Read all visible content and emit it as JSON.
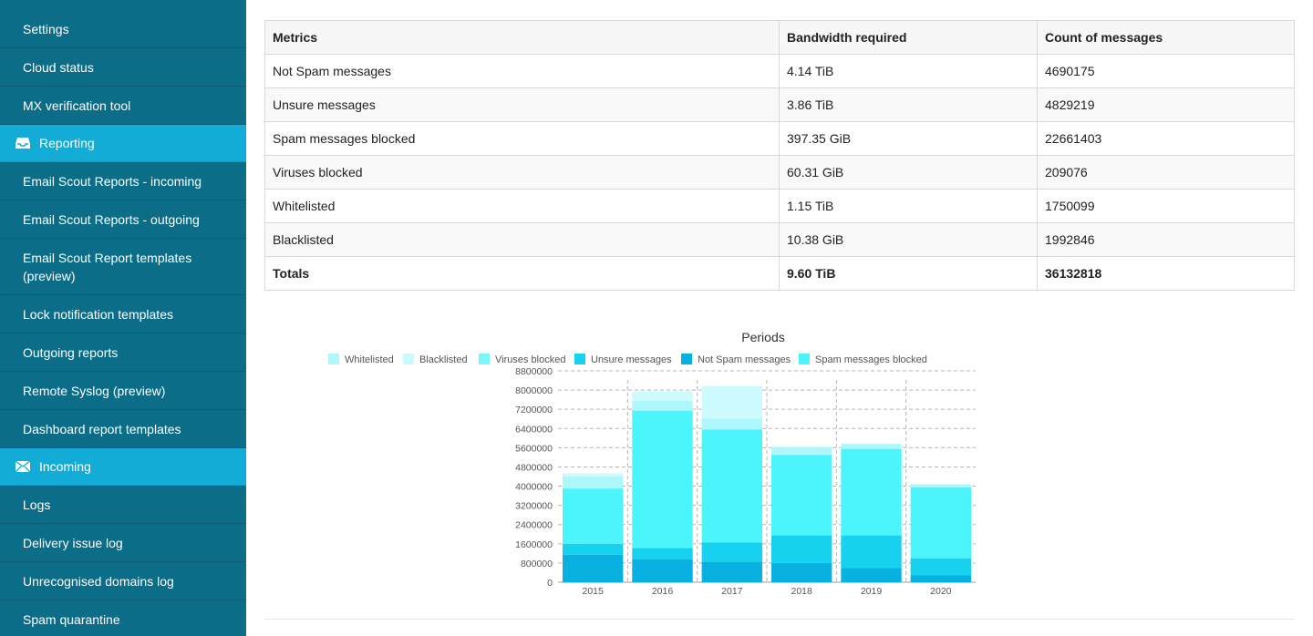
{
  "sidebar": {
    "items": [
      {
        "label": "Settings",
        "type": "item"
      },
      {
        "label": "Cloud status",
        "type": "item"
      },
      {
        "label": "MX verification tool",
        "type": "item"
      },
      {
        "label": "Reporting",
        "type": "section",
        "icon": "inbox-icon"
      },
      {
        "label": "Email Scout Reports - incoming",
        "type": "item"
      },
      {
        "label": "Email Scout Reports - outgoing",
        "type": "item"
      },
      {
        "label": "Email Scout Report templates (preview)",
        "type": "item"
      },
      {
        "label": "Lock notification templates",
        "type": "item"
      },
      {
        "label": "Outgoing reports",
        "type": "item"
      },
      {
        "label": "Remote Syslog (preview)",
        "type": "item"
      },
      {
        "label": "Dashboard report templates",
        "type": "item"
      },
      {
        "label": "Incoming",
        "type": "section",
        "icon": "envelope-icon"
      },
      {
        "label": "Logs",
        "type": "item"
      },
      {
        "label": "Delivery issue log",
        "type": "item"
      },
      {
        "label": "Unrecognised domains log",
        "type": "item"
      },
      {
        "label": "Spam quarantine",
        "type": "item"
      }
    ]
  },
  "table": {
    "headers": [
      "Metrics",
      "Bandwidth required",
      "Count of messages"
    ],
    "rows": [
      [
        "Not Spam messages",
        "4.14 TiB",
        "4690175"
      ],
      [
        "Unsure messages",
        "3.86 TiB",
        "4829219"
      ],
      [
        "Spam messages blocked",
        "397.35 GiB",
        "22661403"
      ],
      [
        "Viruses blocked",
        "60.31 GiB",
        "209076"
      ],
      [
        "Whitelisted",
        "1.15 TiB",
        "1750099"
      ],
      [
        "Blacklisted",
        "10.38 GiB",
        "1992846"
      ]
    ],
    "totals": [
      "Totals",
      "9.60 TiB",
      "36132818"
    ]
  },
  "chart_data": {
    "type": "bar",
    "stacked": true,
    "title": "Periods",
    "xlabel": "",
    "ylabel": "",
    "legend_position": "top",
    "grid": true,
    "ylim": [
      0,
      8800000
    ],
    "yticks": [
      "0",
      "800000",
      "1600000",
      "2400000",
      "3200000",
      "4000000",
      "4800000",
      "5600000",
      "6400000",
      "7200000",
      "8000000",
      "8800000"
    ],
    "categories": [
      "2015",
      "2016",
      "2017",
      "2018",
      "2019",
      "2020"
    ],
    "legend_order": [
      "Whitelisted",
      "Blacklisted",
      "Viruses blocked",
      "Unsure messages",
      "Not Spam messages",
      "Spam messages blocked"
    ],
    "series": [
      {
        "name": "Not Spam messages",
        "color": "#09b1e0",
        "values": [
          1150000,
          950000,
          850000,
          800000,
          600000,
          300000
        ]
      },
      {
        "name": "Unsure messages",
        "color": "#17d2ef",
        "values": [
          450000,
          480000,
          800000,
          1150000,
          1350000,
          700000
        ]
      },
      {
        "name": "Spam messages blocked",
        "color": "#4cf4fb",
        "values": [
          2300000,
          5700000,
          4700000,
          3350000,
          3600000,
          2950000
        ]
      },
      {
        "name": "Viruses blocked",
        "color": "#7af6fc",
        "values": [
          20000,
          20000,
          20000,
          20000,
          20000,
          20000
        ]
      },
      {
        "name": "Whitelisted",
        "color": "#aef8fc",
        "values": [
          480000,
          400000,
          450000,
          290000,
          180000,
          100000
        ]
      },
      {
        "name": "Blacklisted",
        "color": "#cdfbfd",
        "values": [
          130000,
          400000,
          1350000,
          50000,
          30000,
          30000
        ]
      }
    ]
  }
}
